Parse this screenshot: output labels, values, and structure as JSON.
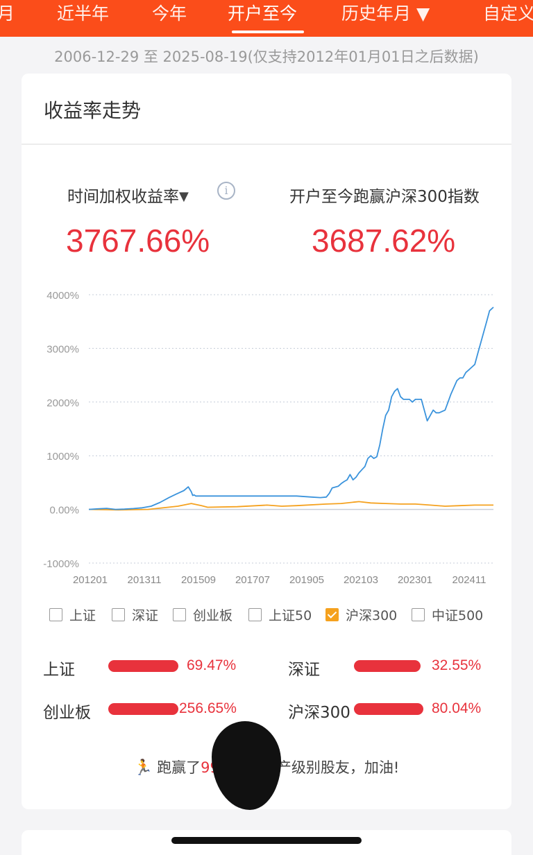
{
  "tabs": [
    {
      "label": "月"
    },
    {
      "label": "近半年"
    },
    {
      "label": "今年"
    },
    {
      "label": "开户至今"
    },
    {
      "label": "历史年月 ▼"
    },
    {
      "label": "自定义"
    }
  ],
  "active_tab": "开户至今",
  "date_range": "2006-12-29 至 2025-08-19(仅支持2012年01月01日之后数据)",
  "card": {
    "title": "收益率走势",
    "metric_left_label": "时间加权收益率",
    "metric_left_caret": "▼",
    "info_icon": "i",
    "metric_left_value": "3767.66%",
    "metric_right_label": "开户至今跑赢沪深300指数",
    "metric_right_value": "3687.62%"
  },
  "chart_data": {
    "type": "line",
    "yticks": [
      "4000%",
      "3000%",
      "2000%",
      "1000%",
      "0.00%",
      "-1000%"
    ],
    "ytick_values": [
      4000,
      3000,
      2000,
      1000,
      0,
      -1000
    ],
    "xticks": [
      "201201",
      "201311",
      "201509",
      "201707",
      "201905",
      "202103",
      "202301",
      "202411"
    ],
    "ylim": [
      -1000,
      4000
    ],
    "grid": true,
    "series": [
      {
        "name": "时间加权收益率",
        "color": "#3a93dc",
        "x": [
          2012.0,
          2012.3,
          2012.6,
          2012.9,
          2013.2,
          2013.5,
          2013.8,
          2014.1,
          2014.4,
          2014.7,
          2015.0,
          2015.2,
          2015.35,
          2015.45,
          2015.5,
          2015.55,
          2015.6,
          2016.0,
          2017.0,
          2018.0,
          2019.0,
          2019.5,
          2019.8,
          2020.0,
          2020.1,
          2020.2,
          2020.4,
          2020.5,
          2020.6,
          2020.7,
          2020.8,
          2020.9,
          2021.0,
          2021.1,
          2021.2,
          2021.3,
          2021.4,
          2021.5,
          2021.6,
          2021.7,
          2021.8,
          2021.9,
          2022.0,
          2022.1,
          2022.2,
          2022.3,
          2022.4,
          2022.5,
          2022.6,
          2022.7,
          2022.8,
          2022.9,
          2023.0,
          2023.2,
          2023.4,
          2023.6,
          2023.7,
          2023.8,
          2024.0,
          2024.1,
          2024.2,
          2024.4,
          2024.5,
          2024.6,
          2024.7,
          2024.8,
          2024.9,
          2025.0,
          2025.1,
          2025.2,
          2025.3,
          2025.4,
          2025.5,
          2025.63
        ],
        "values": [
          0,
          10,
          20,
          0,
          5,
          15,
          30,
          60,
          130,
          220,
          300,
          350,
          420,
          330,
          260,
          270,
          250,
          250,
          250,
          250,
          250,
          230,
          220,
          230,
          300,
          400,
          430,
          480,
          520,
          550,
          650,
          550,
          600,
          680,
          740,
          800,
          950,
          1000,
          950,
          980,
          1200,
          1500,
          1750,
          1850,
          2100,
          2200,
          2250,
          2100,
          2050,
          2050,
          2050,
          2000,
          2050,
          2050,
          1650,
          1850,
          1800,
          1800,
          1850,
          2000,
          2150,
          2400,
          2450,
          2450,
          2550,
          2600,
          2650,
          2700,
          2900,
          3100,
          3300,
          3500,
          3700,
          3768
        ]
      },
      {
        "name": "沪深300",
        "color": "#f5a11e",
        "x": [
          2012.0,
          2013.0,
          2014.0,
          2015.0,
          2015.45,
          2015.8,
          2016.0,
          2017.0,
          2018.0,
          2018.5,
          2019.0,
          2020.0,
          2020.5,
          2021.0,
          2021.1,
          2021.5,
          2022.0,
          2022.5,
          2023.0,
          2023.5,
          2024.0,
          2024.5,
          2025.0,
          2025.63
        ],
        "values": [
          0,
          -10,
          0,
          60,
          110,
          70,
          40,
          50,
          80,
          60,
          70,
          100,
          110,
          140,
          145,
          120,
          110,
          100,
          100,
          80,
          60,
          70,
          80,
          80
        ]
      }
    ]
  },
  "legend": [
    {
      "label": "上证",
      "checked": false
    },
    {
      "label": "深证",
      "checked": false
    },
    {
      "label": "创业板",
      "checked": false
    },
    {
      "label": "上证50",
      "checked": false
    },
    {
      "label": "沪深300",
      "checked": true
    },
    {
      "label": "中证500",
      "checked": false
    }
  ],
  "comparisons": [
    {
      "name": "上证",
      "value": "69.47%"
    },
    {
      "name": "深证",
      "value": "32.55%"
    },
    {
      "name": "创业板",
      "value": "256.65%"
    },
    {
      "name": "沪深300",
      "value": "80.04%"
    }
  ],
  "beat": {
    "icon": "running-icon",
    "prefix": "跑赢了",
    "percent": "99%",
    "suffix": "的同资产级别股友，加油!"
  },
  "colors": {
    "brand": "#fb4d1a",
    "positive": "#e8323c",
    "series_main": "#3a93dc",
    "series_benchmark": "#f5a11e"
  }
}
